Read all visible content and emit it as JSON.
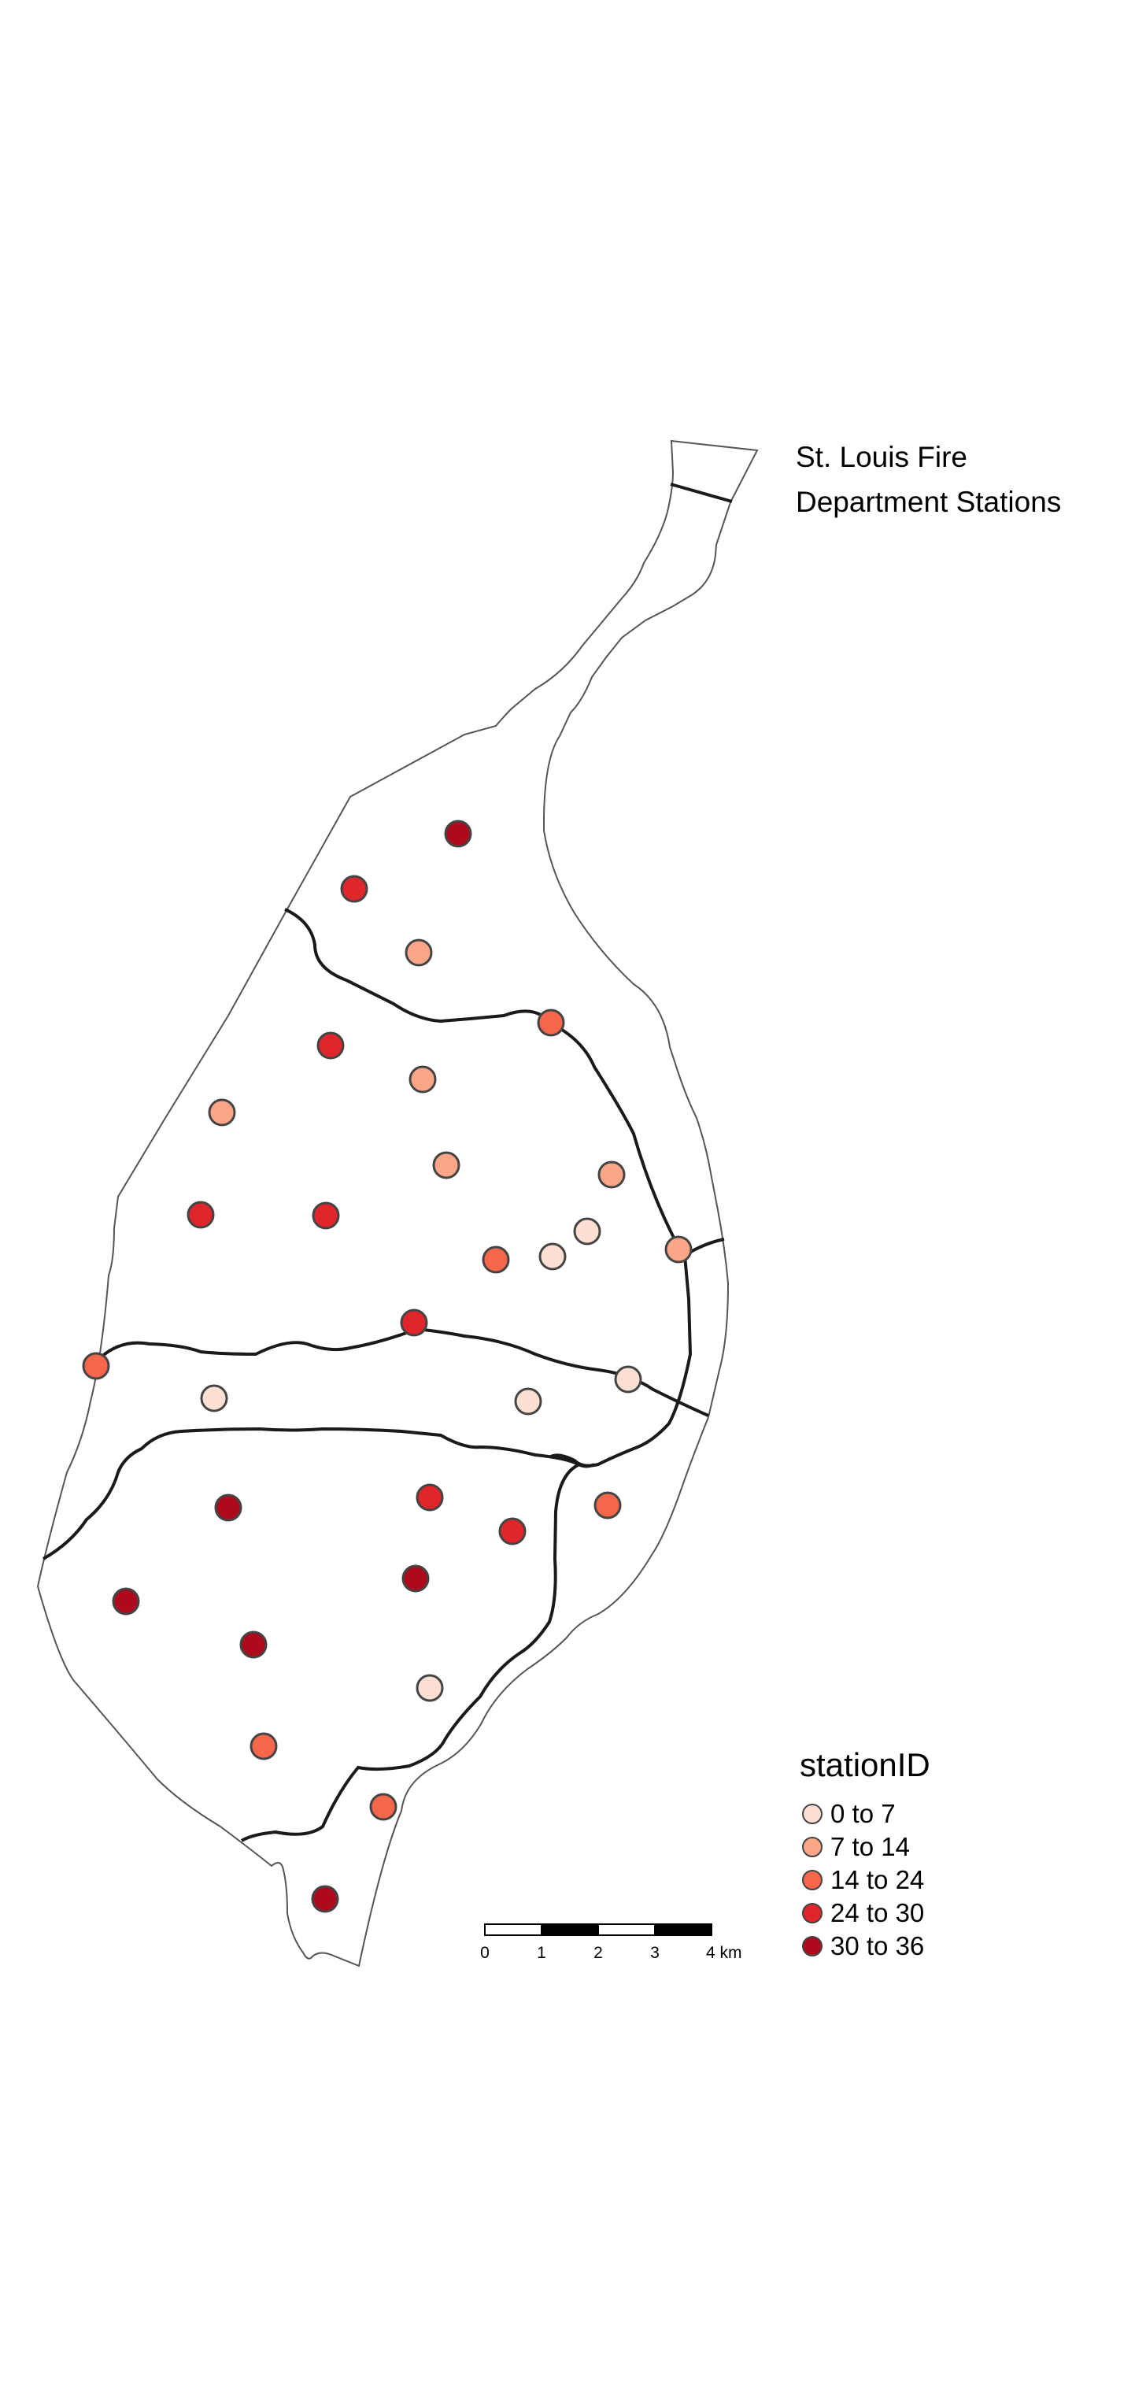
{
  "title_lines": [
    "St. Louis Fire",
    "Department Stations"
  ],
  "legend": {
    "title": "stationID",
    "items": [
      {
        "label": "0 to 7",
        "color": "#fde0d2"
      },
      {
        "label": "7 to 14",
        "color": "#fba686"
      },
      {
        "label": "14 to 24",
        "color": "#f5664b"
      },
      {
        "label": "24 to 30",
        "color": "#e0262a"
      },
      {
        "label": "30 to 36",
        "color": "#ad0a1c"
      }
    ]
  },
  "scale_bar": {
    "labels": [
      "0",
      "1",
      "2",
      "3",
      "4 km"
    ]
  },
  "stations": [
    {
      "class": 4
    },
    {
      "class": 3
    },
    {
      "class": 1
    },
    {
      "class": 2
    },
    {
      "class": 3
    },
    {
      "class": 1
    },
    {
      "class": 1
    },
    {
      "class": 3
    },
    {
      "class": 3
    },
    {
      "class": 1
    },
    {
      "class": 0
    },
    {
      "class": 1
    },
    {
      "class": 2
    },
    {
      "class": 0
    },
    {
      "class": 3
    },
    {
      "class": 2
    },
    {
      "class": 0
    },
    {
      "class": 0
    },
    {
      "class": 1
    },
    {
      "class": 0
    },
    {
      "class": 4
    },
    {
      "class": 4
    },
    {
      "class": 4
    },
    {
      "class": 4
    },
    {
      "class": 0
    },
    {
      "class": 2
    },
    {
      "class": 2
    },
    {
      "class": 4
    },
    {
      "class": 3
    },
    {
      "class": 3
    },
    {
      "class": 2
    }
  ],
  "colors": {
    "boundary": "#555555",
    "districts": "#1a1a1a",
    "station_border": "#444444"
  }
}
